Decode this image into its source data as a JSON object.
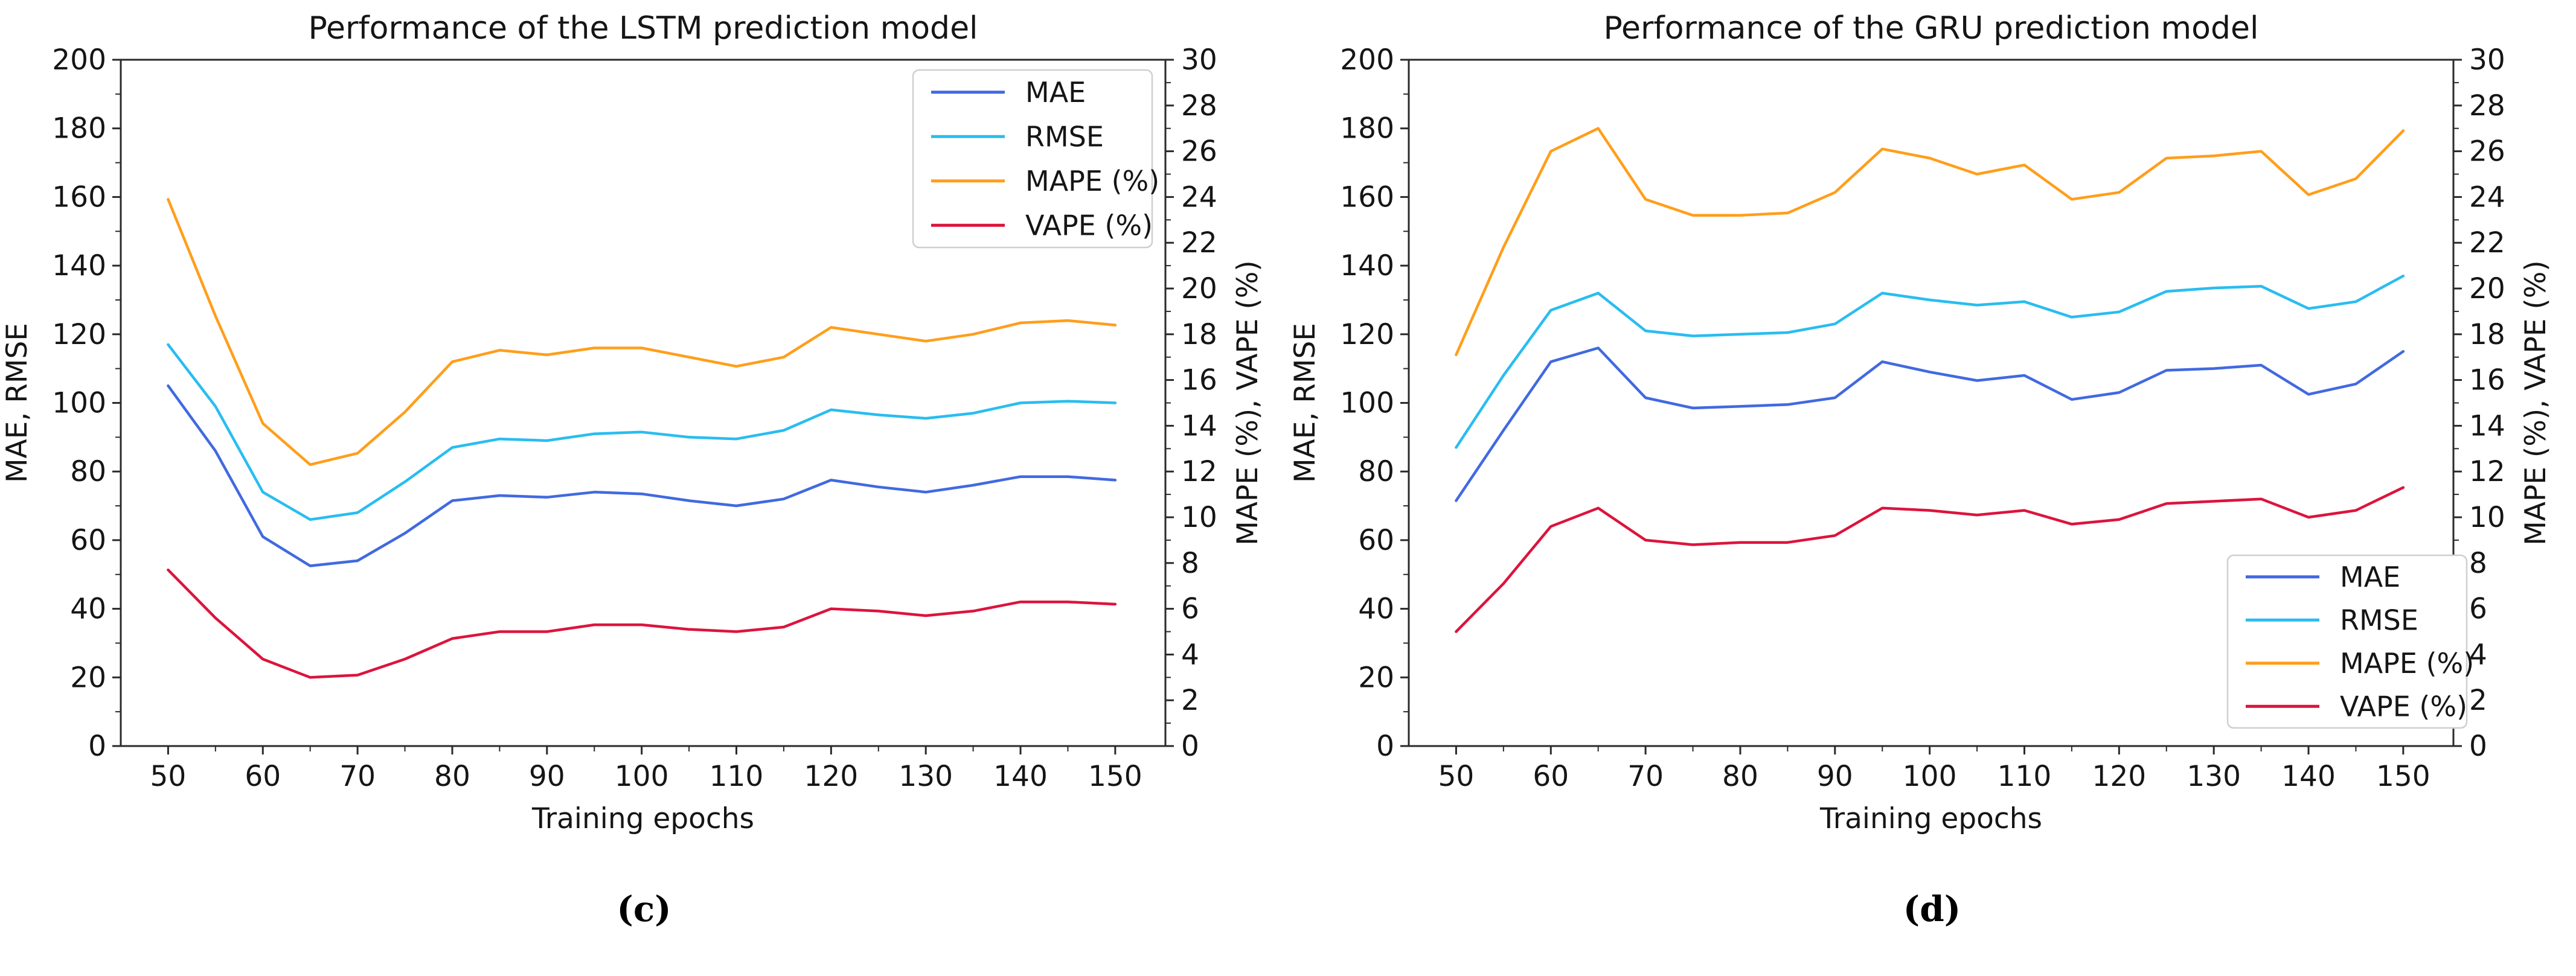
{
  "figure": {
    "background": "#ffffff",
    "text_color": "#151515",
    "spine_color": "#2a2a2a",
    "legend_border_color": "#cfcfcf"
  },
  "chart_data": [
    {
      "type": "line",
      "title": "Performance of the LSTM prediction model",
      "xlabel": "Training epochs",
      "ylabel_left": "MAE, RMSE",
      "ylabel_right": "MAPE (%), VAPE (%)",
      "caption": "(c)",
      "grid": false,
      "legend_position": "upper-right",
      "x": [
        50,
        55,
        60,
        65,
        70,
        75,
        80,
        85,
        90,
        95,
        100,
        105,
        110,
        115,
        120,
        125,
        130,
        135,
        140,
        145,
        150
      ],
      "xlim": [
        45,
        155.3
      ],
      "ylim_left": [
        0,
        200
      ],
      "ylim_right": [
        0,
        30
      ],
      "xticks": [
        50,
        60,
        70,
        80,
        90,
        100,
        110,
        120,
        130,
        140,
        150
      ],
      "yticks_left": [
        0,
        20,
        40,
        60,
        80,
        100,
        120,
        140,
        160,
        180,
        200
      ],
      "yticks_right": [
        0,
        2,
        4,
        6,
        8,
        10,
        12,
        14,
        16,
        18,
        20,
        22,
        24,
        26,
        28,
        30
      ],
      "series": [
        {
          "id": "mae",
          "name": "MAE",
          "axis": "left",
          "color": "#4169E1",
          "values": [
            105,
            86,
            61,
            52.5,
            54,
            62,
            71.5,
            73,
            72.5,
            74,
            73.5,
            71.5,
            70,
            72,
            77.5,
            75.5,
            74,
            76,
            78.5,
            78.5,
            77.5
          ]
        },
        {
          "id": "rmse",
          "name": "RMSE",
          "axis": "left",
          "color": "#29BDF0",
          "values": [
            117,
            99,
            74,
            66,
            68,
            77,
            87,
            89.5,
            89,
            91,
            91.5,
            90,
            89.5,
            92,
            98,
            96.5,
            95.5,
            97,
            100,
            100.5,
            100
          ]
        },
        {
          "id": "mape",
          "name": "MAPE (%)",
          "axis": "right",
          "color": "#FF9E1B",
          "values": [
            23.9,
            18.8,
            14.1,
            12.3,
            12.8,
            14.6,
            16.8,
            17.3,
            17.1,
            17.4,
            17.4,
            17.0,
            16.6,
            17.0,
            18.3,
            18.0,
            17.7,
            18.0,
            18.5,
            18.6,
            18.4
          ]
        },
        {
          "id": "vape",
          "name": "VAPE (%)",
          "axis": "right",
          "color": "#DC143C",
          "values": [
            7.7,
            5.6,
            3.8,
            3.0,
            3.1,
            3.8,
            4.7,
            5.0,
            5.0,
            5.3,
            5.3,
            5.1,
            5.0,
            5.2,
            6.0,
            5.9,
            5.7,
            5.9,
            6.3,
            6.3,
            6.2
          ]
        }
      ]
    },
    {
      "type": "line",
      "title": "Performance of the GRU prediction model",
      "xlabel": "Training epochs",
      "ylabel_left": "MAE, RMSE",
      "ylabel_right": "MAPE (%), VAPE (%)",
      "caption": "(d)",
      "grid": false,
      "legend_position": "lower-right",
      "x": [
        50,
        55,
        60,
        65,
        70,
        75,
        80,
        85,
        90,
        95,
        100,
        105,
        110,
        115,
        120,
        125,
        130,
        135,
        140,
        145,
        150
      ],
      "xlim": [
        45,
        155.3
      ],
      "ylim_left": [
        0,
        200
      ],
      "ylim_right": [
        0,
        30
      ],
      "xticks": [
        50,
        60,
        70,
        80,
        90,
        100,
        110,
        120,
        130,
        140,
        150
      ],
      "yticks_left": [
        0,
        20,
        40,
        60,
        80,
        100,
        120,
        140,
        160,
        180,
        200
      ],
      "yticks_right": [
        0,
        2,
        4,
        6,
        8,
        10,
        12,
        14,
        16,
        18,
        20,
        22,
        24,
        26,
        28,
        30
      ],
      "series": [
        {
          "id": "mae",
          "name": "MAE",
          "axis": "left",
          "color": "#4169E1",
          "values": [
            71.5,
            92,
            112,
            116,
            101.5,
            98.5,
            99,
            99.5,
            101.5,
            112,
            109,
            106.5,
            108,
            101,
            103,
            109.5,
            110,
            111,
            102.5,
            105.5,
            115
          ]
        },
        {
          "id": "rmse",
          "name": "RMSE",
          "axis": "left",
          "color": "#29BDF0",
          "values": [
            87,
            108,
            127,
            132,
            121,
            119.5,
            120,
            120.5,
            123,
            132,
            130,
            128.5,
            129.5,
            125,
            126.5,
            132.5,
            133.5,
            134,
            127.5,
            129.5,
            137
          ]
        },
        {
          "id": "mape",
          "name": "MAPE (%)",
          "axis": "right",
          "color": "#FF9E1B",
          "values": [
            17.1,
            21.8,
            26.0,
            27.0,
            23.9,
            23.2,
            23.2,
            23.3,
            24.2,
            26.1,
            25.7,
            25.0,
            25.4,
            23.9,
            24.2,
            25.7,
            25.8,
            26.0,
            24.1,
            24.8,
            26.9
          ]
        },
        {
          "id": "vape",
          "name": "VAPE (%)",
          "axis": "right",
          "color": "#DC143C",
          "values": [
            5.0,
            7.1,
            9.6,
            10.4,
            9.0,
            8.8,
            8.9,
            8.9,
            9.2,
            10.4,
            10.3,
            10.1,
            10.3,
            9.7,
            9.9,
            10.6,
            10.7,
            10.8,
            10.0,
            10.3,
            11.3
          ]
        }
      ]
    }
  ]
}
